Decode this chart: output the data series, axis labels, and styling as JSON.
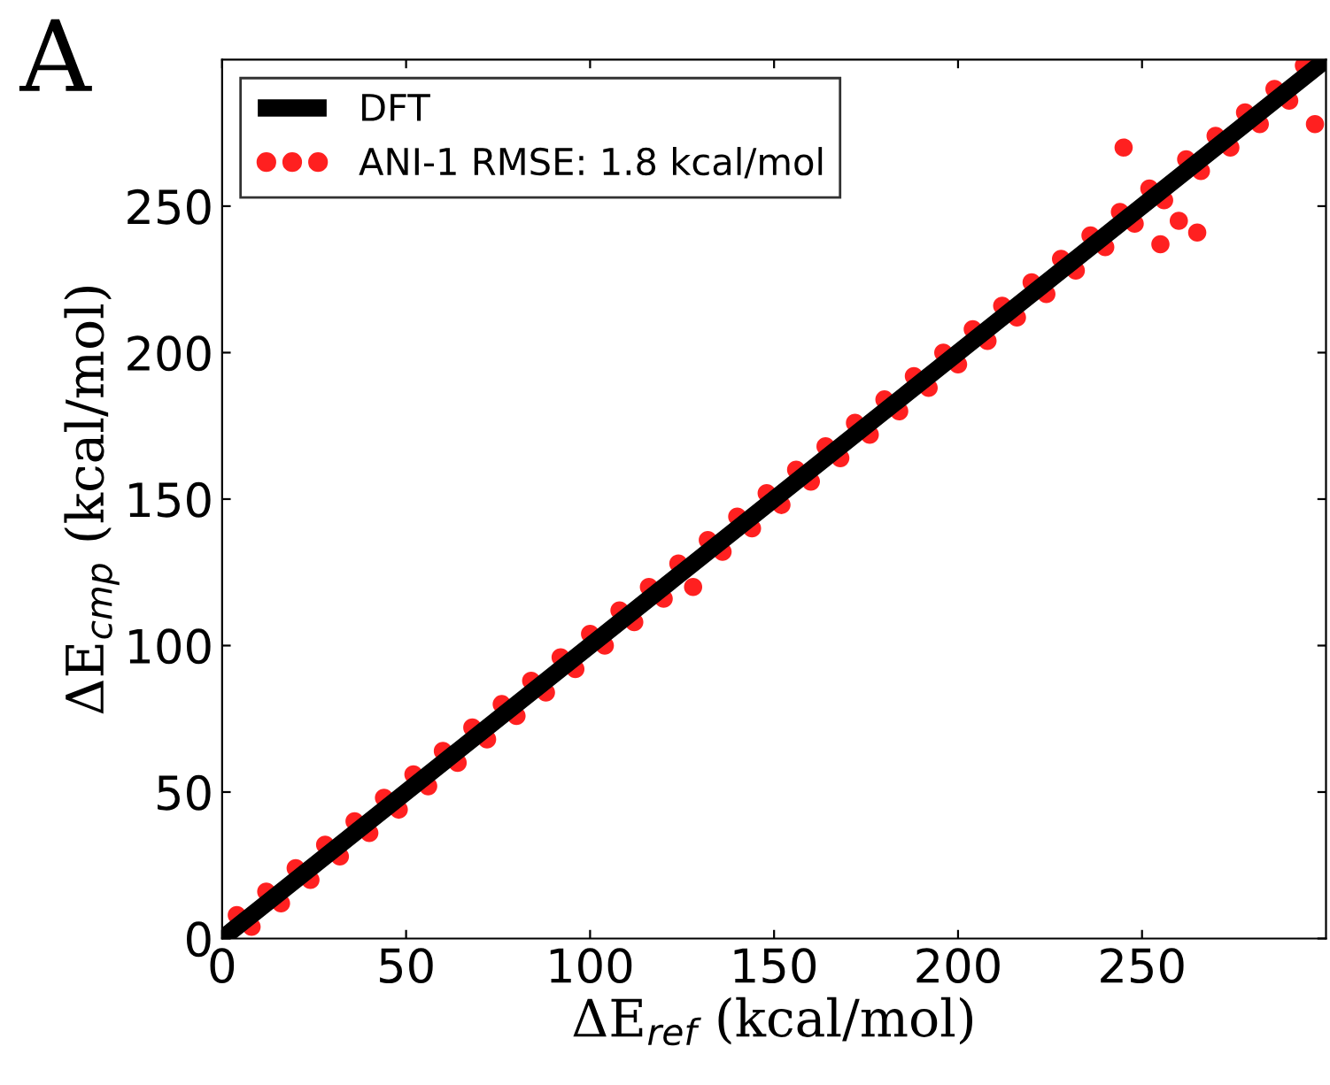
{
  "chart_data": {
    "type": "scatter",
    "xlabel": "ΔE$_{ref}$ (kcal/mol)",
    "ylabel": "ΔE$_{cmp}$ (kcal/mol)",
    "annotations": [
      "A"
    ],
    "xlim": [
      0,
      300
    ],
    "ylim": [
      0,
      300
    ],
    "xticks": [
      0,
      50,
      100,
      150,
      200,
      250
    ],
    "yticks": [
      0,
      50,
      100,
      150,
      200,
      250
    ],
    "grid": false,
    "legend": "top left",
    "series": [
      {
        "name": "DFT",
        "type": "line",
        "color": "#000000",
        "line_style": "solid",
        "x": [
          0,
          300
        ],
        "values": [
          0,
          300
        ]
      },
      {
        "name": "ANI-1 RMSE: 1.8 kcal/mol",
        "color": "#ff2020",
        "marker": "circle",
        "x": [
          4,
          8,
          12,
          16,
          20,
          24,
          28,
          32,
          36,
          40,
          44,
          48,
          52,
          56,
          60,
          64,
          68,
          72,
          76,
          80,
          84,
          88,
          92,
          96,
          100,
          104,
          108,
          112,
          116,
          120,
          124,
          128,
          132,
          136,
          140,
          144,
          148,
          152,
          156,
          160,
          164,
          168,
          172,
          176,
          180,
          184,
          188,
          192,
          196,
          200,
          204,
          208,
          212,
          216,
          220,
          224,
          228,
          232,
          236,
          240,
          244,
          245,
          248,
          252,
          255,
          256,
          260,
          262,
          265,
          266,
          270,
          274,
          278,
          282,
          286,
          290,
          294,
          297
        ],
        "values": [
          8,
          4,
          16,
          12,
          24,
          20,
          32,
          28,
          40,
          36,
          48,
          44,
          56,
          52,
          64,
          60,
          72,
          68,
          80,
          76,
          88,
          84,
          96,
          92,
          104,
          100,
          112,
          108,
          120,
          116,
          128,
          120,
          136,
          132,
          144,
          140,
          152,
          148,
          160,
          156,
          168,
          164,
          176,
          172,
          184,
          180,
          192,
          188,
          200,
          196,
          208,
          204,
          216,
          212,
          224,
          220,
          232,
          228,
          240,
          236,
          248,
          270,
          244,
          256,
          237,
          252,
          245,
          266,
          241,
          262,
          274,
          270,
          282,
          278,
          290,
          286,
          298,
          278
        ]
      }
    ]
  }
}
